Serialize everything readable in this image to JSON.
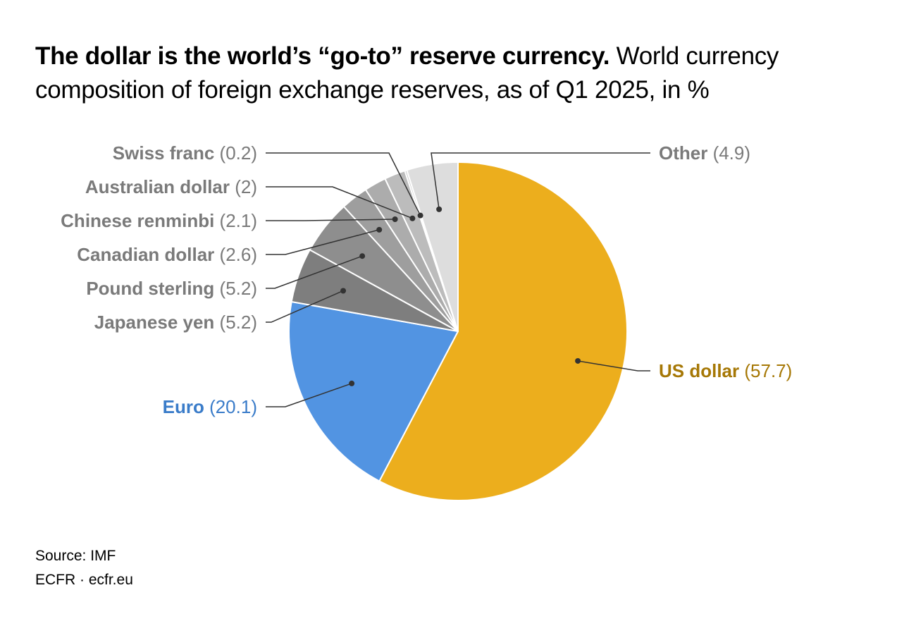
{
  "title": {
    "bold": "The dollar is the world’s “go-to” reserve currency.",
    "rest": "World currency composition of foreign exchange reserves, as of Q1 2025, in %"
  },
  "source": "Source: IMF",
  "credit": "ECFR · ecfr.eu",
  "colors": {
    "us_dollar": "#ECAE1D",
    "euro": "#5294E2",
    "yen": "#7E7E7E",
    "sterling": "#8E8E8E",
    "cad": "#9E9E9E",
    "rmb": "#ACACAC",
    "aud": "#BCBCBC",
    "chf": "#C8C8C8",
    "other": "#DDDDDD",
    "us_label": "#A67806",
    "euro_label": "#3A7CC9",
    "grey_label": "#7A7A7A"
  },
  "chart_data": {
    "type": "pie",
    "start": "top, clockwise",
    "slices": [
      {
        "label": "US dollar",
        "value": 57.7,
        "display": "(57.7)",
        "color": "#ECAE1D",
        "label_color": "#A67806"
      },
      {
        "label": "Euro",
        "value": 20.1,
        "display": "(20.1)",
        "color": "#5294E2",
        "label_color": "#3A7CC9"
      },
      {
        "label": "Japanese yen",
        "value": 5.2,
        "display": "(5.2)",
        "color": "#7E7E7E",
        "label_color": "#7A7A7A"
      },
      {
        "label": "Pound sterling",
        "value": 5.2,
        "display": "(5.2)",
        "color": "#8E8E8E",
        "label_color": "#7A7A7A"
      },
      {
        "label": "Canadian dollar",
        "value": 2.6,
        "display": "(2.6)",
        "color": "#9E9E9E",
        "label_color": "#7A7A7A"
      },
      {
        "label": "Chinese renminbi",
        "value": 2.1,
        "display": "(2.1)",
        "color": "#ACACAC",
        "label_color": "#7A7A7A"
      },
      {
        "label": "Australian dollar",
        "value": 2,
        "display": "(2)",
        "color": "#BCBCBC",
        "label_color": "#7A7A7A"
      },
      {
        "label": "Swiss franc",
        "value": 0.2,
        "display": "(0.2)",
        "color": "#C8C8C8",
        "label_color": "#7A7A7A"
      },
      {
        "label": "Other",
        "value": 4.9,
        "display": "(4.9)",
        "color": "#DDDDDD",
        "label_color": "#7A7A7A"
      }
    ]
  }
}
